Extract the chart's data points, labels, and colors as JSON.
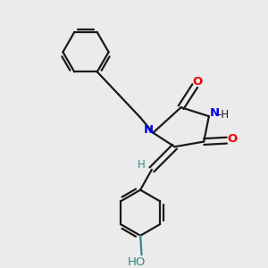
{
  "bg_color": "#ebebeb",
  "bond_color": "#1a1a1a",
  "N_color": "#0000ee",
  "O_color": "#ee0000",
  "teal_color": "#338888",
  "bond_width": 1.6,
  "figsize": [
    3.0,
    3.0
  ],
  "dpi": 100,
  "xlim": [
    0,
    10
  ],
  "ylim": [
    0,
    10
  ]
}
